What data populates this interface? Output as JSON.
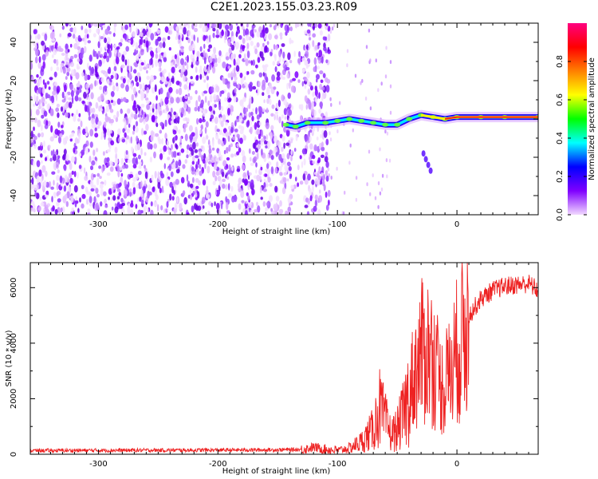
{
  "title": "C2E1.2023.155.03.23.R09",
  "chart_data": [
    {
      "type": "heatmap",
      "title": "",
      "xlabel": "Height of straight line (km)",
      "ylabel": "Frequency (Hz)",
      "xlim": [
        -357,
        68
      ],
      "ylim": [
        -50,
        50
      ],
      "xticks": [
        -300,
        -200,
        -100,
        0
      ],
      "yticks": [
        -40,
        -20,
        0,
        20,
        40
      ],
      "signal_track": [
        {
          "x": -143,
          "y": -3
        },
        {
          "x": -135,
          "y": -4
        },
        {
          "x": -125,
          "y": -2
        },
        {
          "x": -110,
          "y": -2
        },
        {
          "x": -100,
          "y": -1
        },
        {
          "x": -90,
          "y": 0
        },
        {
          "x": -80,
          "y": -1
        },
        {
          "x": -70,
          "y": -2
        },
        {
          "x": -60,
          "y": -3
        },
        {
          "x": -50,
          "y": -3
        },
        {
          "x": -40,
          "y": 0
        },
        {
          "x": -30,
          "y": 2
        },
        {
          "x": -20,
          "y": 1
        },
        {
          "x": -10,
          "y": 0
        },
        {
          "x": 0,
          "y": 1
        },
        {
          "x": 20,
          "y": 1
        },
        {
          "x": 40,
          "y": 1
        },
        {
          "x": 68,
          "y": 1
        }
      ],
      "colorbar": {
        "label": "Normalized spectral amplitude",
        "ticks": [
          0.0,
          0.2,
          0.4,
          0.6,
          0.8
        ],
        "range": [
          0,
          1
        ],
        "colors": [
          "#f2d9ff",
          "#7f00ff",
          "#0000ff",
          "#00ffff",
          "#00ff00",
          "#ffff00",
          "#ff8000",
          "#ff0000",
          "#ff0080"
        ]
      }
    },
    {
      "type": "line",
      "title": "",
      "xlabel": "Height of straight line (km)",
      "ylabel": "SNR (10 * v/v)",
      "xlim": [
        -357,
        68
      ],
      "ylim": [
        0,
        6900
      ],
      "xticks": [
        -300,
        -200,
        -100,
        0
      ],
      "yticks": [
        0,
        2000,
        4000,
        6000
      ],
      "color": "#ee2222",
      "series": [
        {
          "name": "SNR",
          "x": [
            -357,
            -300,
            -250,
            -200,
            -150,
            -130,
            -120,
            -110,
            -100,
            -90,
            -80,
            -70,
            -65,
            -60,
            -55,
            -50,
            -45,
            -40,
            -35,
            -30,
            -25,
            -20,
            -15,
            -10,
            -5,
            0,
            5,
            10,
            20,
            30,
            40,
            50,
            60,
            68
          ],
          "values": [
            130,
            140,
            145,
            150,
            160,
            170,
            250,
            180,
            140,
            220,
            450,
            900,
            1700,
            1200,
            700,
            900,
            1400,
            2200,
            3000,
            3600,
            3800,
            3500,
            2600,
            2400,
            3000,
            3700,
            4400,
            5000,
            5600,
            5900,
            6050,
            6100,
            6150,
            5900
          ]
        }
      ]
    }
  ]
}
